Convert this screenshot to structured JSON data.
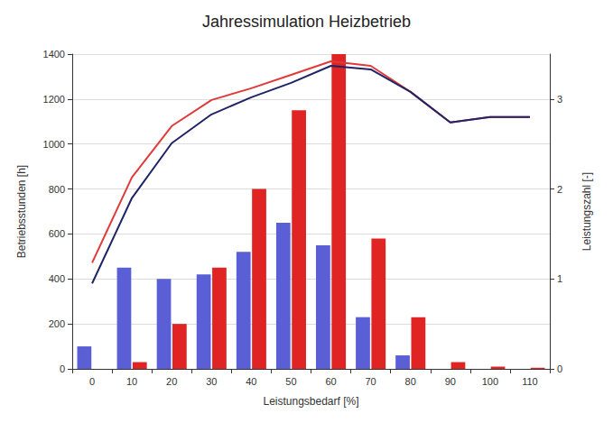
{
  "chart_data": {
    "type": "bar",
    "title": "Jahressimulation Heizbetrieb",
    "x_label": "Leistungsbedarf [%]",
    "y_label": "Betriebsstunden [h]",
    "y2_label": "Leistungszahl [-]",
    "categories": [
      "0",
      "10",
      "20",
      "30",
      "40",
      "50",
      "60",
      "70",
      "80",
      "90",
      "100",
      "110"
    ],
    "series": [
      {
        "type": "bar",
        "color": "#5a5fd6",
        "values": [
          100,
          450,
          400,
          420,
          520,
          650,
          550,
          230,
          60,
          0,
          0,
          0
        ]
      },
      {
        "type": "bar",
        "color": "#e02424",
        "values": [
          0,
          30,
          200,
          450,
          800,
          1150,
          1400,
          580,
          230,
          30,
          10,
          5
        ]
      },
      {
        "type": "line",
        "axis": "y2",
        "color": "#e03a3a",
        "values": [
          1.18,
          2.13,
          2.7,
          2.99,
          3.12,
          3.27,
          3.42,
          3.37,
          3.08,
          2.74,
          2.8,
          2.8
        ]
      },
      {
        "type": "line",
        "axis": "y2",
        "color": "#1f2466",
        "values": [
          0.95,
          1.9,
          2.51,
          2.83,
          3.02,
          3.18,
          3.37,
          3.33,
          3.08,
          2.74,
          2.8,
          2.8
        ]
      }
    ],
    "ylim": [
      0,
      1400
    ],
    "yticks": [
      0,
      200,
      400,
      600,
      800,
      1000,
      1200,
      1400
    ],
    "y2lim": [
      0,
      3.5
    ],
    "y2ticks": [
      0,
      1,
      2,
      3
    ],
    "grid": true
  }
}
